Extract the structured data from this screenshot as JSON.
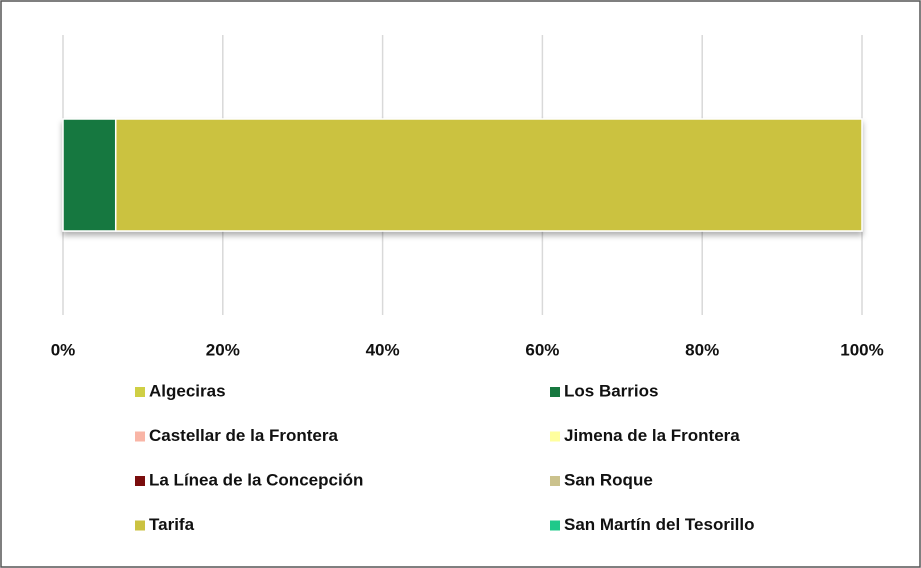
{
  "chart_data": {
    "type": "stacked_bar_horizontal",
    "categories": [
      null
    ],
    "series": [
      {
        "name": "Algeciras",
        "color": "#cfcf45",
        "values": [
          0
        ]
      },
      {
        "name": "Los Barrios",
        "color": "#17783f",
        "values": [
          6.6
        ]
      },
      {
        "name": "Castellar de la Frontera",
        "color": "#f9b5a6",
        "values": [
          0
        ]
      },
      {
        "name": "Jimena de la Frontera",
        "color": "#ffff9e",
        "values": [
          0
        ]
      },
      {
        "name": "La Línea de la Concepción",
        "color": "#7a0d0d",
        "values": [
          0
        ]
      },
      {
        "name": "San Roque",
        "color": "#cbc28d",
        "values": [
          0
        ]
      },
      {
        "name": "Tarifa",
        "color": "#cbc241",
        "values": [
          93.4
        ]
      },
      {
        "name": "San Martín del Tesorillo",
        "color": "#1fc98a",
        "values": [
          0
        ]
      }
    ],
    "xlim": [
      0,
      100
    ],
    "xticks": [
      {
        "value": 0,
        "label": "0%"
      },
      {
        "value": 20,
        "label": "20%"
      },
      {
        "value": 40,
        "label": "40%"
      },
      {
        "value": 60,
        "label": "60%"
      },
      {
        "value": 80,
        "label": "80%"
      },
      {
        "value": 100,
        "label": "100%"
      }
    ],
    "grid": true,
    "legend": "bottom"
  }
}
